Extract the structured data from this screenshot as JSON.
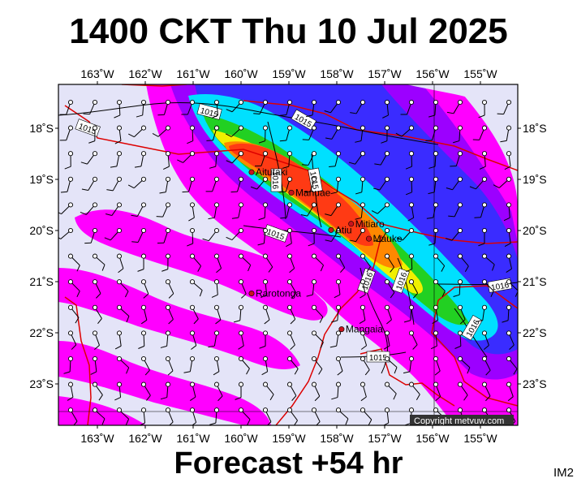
{
  "header": {
    "title": "1400 CKT Thu 10 Jul 2025"
  },
  "footer": {
    "forecast": "Forecast +54 hr",
    "code": "IM2"
  },
  "copyright": "Copyright metvuw.com",
  "axes": {
    "lon_labels": [
      "163˚W",
      "162˚W",
      "161˚W",
      "160˚W",
      "159˚W",
      "158˚W",
      "157˚W",
      "156˚W",
      "155˚W"
    ],
    "lat_labels": [
      "18˚S",
      "19˚S",
      "20˚S",
      "21˚S",
      "22˚S",
      "23˚S"
    ]
  },
  "places": [
    {
      "name": "Aitutaki",
      "lon": -159.78,
      "lat": -18.86
    },
    {
      "name": "Manuae",
      "lon": -158.95,
      "lat": -19.26
    },
    {
      "name": "Atiu",
      "lon": -158.12,
      "lat": -19.99
    },
    {
      "name": "Mitiaro",
      "lon": -157.7,
      "lat": -19.87
    },
    {
      "name": "Mauke",
      "lon": -157.33,
      "lat": -20.16
    },
    {
      "name": "Rarotonga",
      "lon": -159.78,
      "lat": -21.23
    },
    {
      "name": "Mangaia",
      "lon": -157.9,
      "lat": -21.93
    }
  ],
  "isobar_labels": [
    "1015",
    "1015",
    "1015",
    "1016",
    "1015",
    "1015",
    "1016",
    "1016",
    "1016",
    "1016",
    "1015"
  ],
  "colors": {
    "background": "#e4e4f8",
    "magenta": "#ff00ff",
    "purple": "#9c00ff",
    "blue": "#3a2cff",
    "cyan": "#00e0ff",
    "green": "#22d022",
    "yellow": "#f0f000",
    "orange": "#ff8800",
    "red": "#ff3a14",
    "boundary": "#dd0000"
  }
}
